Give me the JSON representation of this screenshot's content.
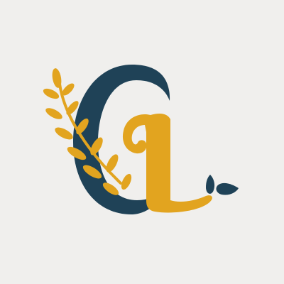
{
  "logo": {
    "monogram": "CL",
    "colors": {
      "background": "#f0efed",
      "navy": "#1f4257",
      "gold": "#e2a41f"
    },
    "elements": [
      "letter-c",
      "letter-l",
      "laurel-branch",
      "water-splash"
    ]
  }
}
